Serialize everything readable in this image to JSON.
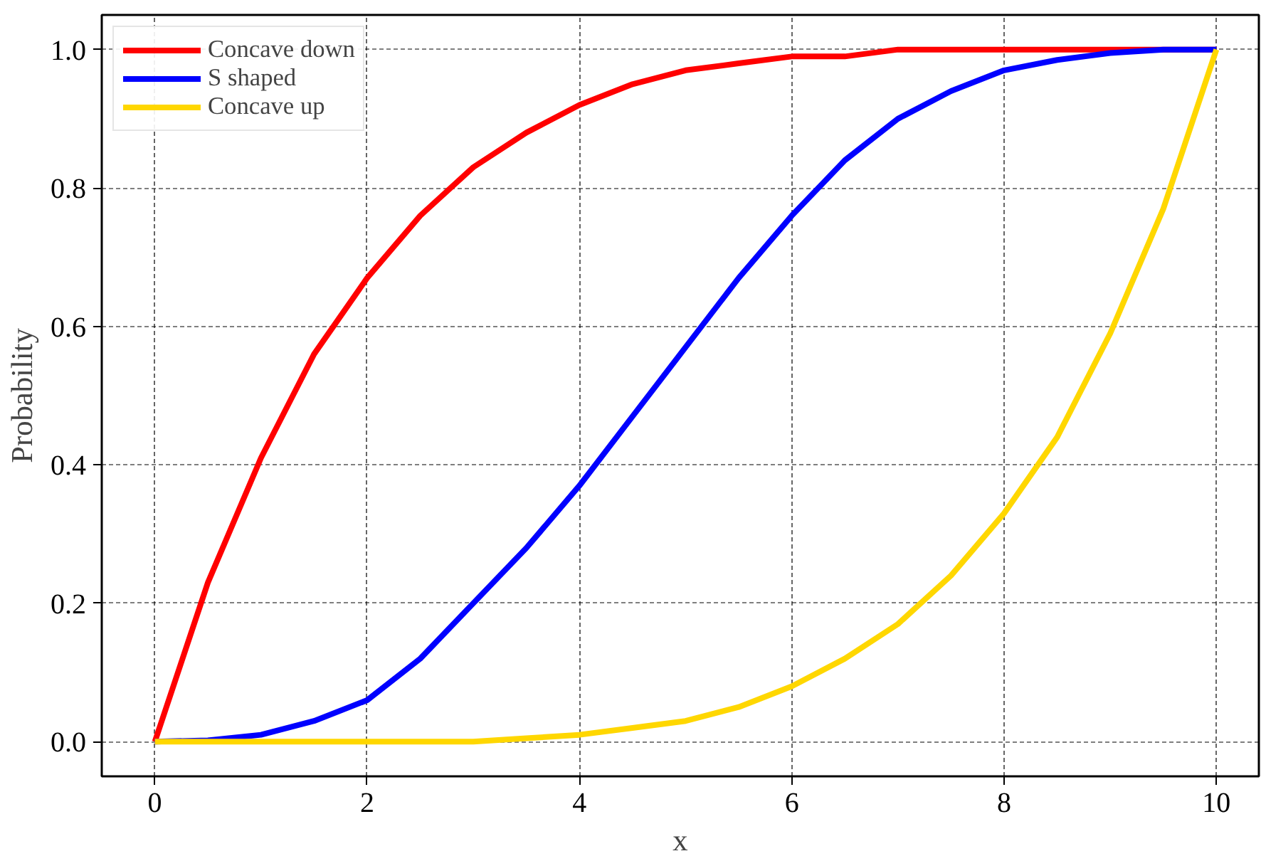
{
  "chart_data": {
    "type": "line",
    "xlabel": "x",
    "ylabel": "Probability",
    "xlim": [
      -0.5,
      10.4
    ],
    "ylim": [
      -0.05,
      1.05
    ],
    "xticks": [
      0,
      2,
      4,
      6,
      8,
      10
    ],
    "yticks": [
      {
        "value": 0,
        "label": "0.0"
      },
      {
        "value": 0.2,
        "label": "0.2"
      },
      {
        "value": 0.4,
        "label": "0.4"
      },
      {
        "value": 0.6,
        "label": "0.6"
      },
      {
        "value": 0.8,
        "label": "0.8"
      },
      {
        "value": 1,
        "label": "1.0"
      }
    ],
    "grid": true,
    "legend": "top left",
    "line_style": "solid",
    "x": [
      0,
      0.5,
      1,
      1.5,
      2,
      2.5,
      3,
      3.5,
      4,
      4.5,
      5,
      5.5,
      6,
      6.5,
      7,
      7.5,
      8,
      8.5,
      9,
      9.5,
      10
    ],
    "series": [
      {
        "name": "Concave down",
        "color": "#ff0000",
        "values": [
          0,
          0.23,
          0.41,
          0.56,
          0.67,
          0.76,
          0.83,
          0.88,
          0.92,
          0.95,
          0.97,
          0.98,
          0.99,
          0.99,
          1.0,
          1.0,
          1.0,
          1.0,
          1.0,
          1.0,
          1.0
        ]
      },
      {
        "name": "S shaped",
        "color": "#0000ff",
        "values": [
          0,
          0.002,
          0.01,
          0.03,
          0.06,
          0.12,
          0.2,
          0.28,
          0.37,
          0.47,
          0.57,
          0.67,
          0.76,
          0.84,
          0.9,
          0.94,
          0.97,
          0.985,
          0.995,
          1.0,
          1.0
        ]
      },
      {
        "name": "Concave up",
        "color": "#ffd700",
        "values": [
          0,
          0,
          0,
          0,
          0,
          0,
          0,
          0.005,
          0.01,
          0.02,
          0.03,
          0.05,
          0.08,
          0.12,
          0.17,
          0.24,
          0.33,
          0.44,
          0.59,
          0.77,
          1.0
        ]
      }
    ]
  }
}
